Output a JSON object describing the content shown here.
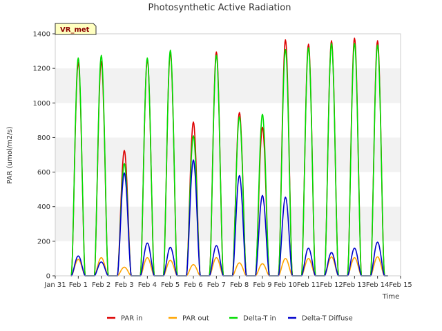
{
  "chart_data": {
    "type": "line",
    "title": "Photosynthetic Active Radiation",
    "xlabel": "Time",
    "ylabel": "PAR (umol/m2/s)",
    "ylim": [
      0,
      1400
    ],
    "xlim": [
      0,
      15
    ],
    "yticks": [
      0,
      200,
      400,
      600,
      800,
      1000,
      1200,
      1400
    ],
    "x_ticks": [
      {
        "value": 0,
        "label": "Jan 31"
      },
      {
        "value": 1,
        "label": "Feb 1"
      },
      {
        "value": 2,
        "label": "Feb 2"
      },
      {
        "value": 3,
        "label": "Feb 3"
      },
      {
        "value": 4,
        "label": "Feb 4"
      },
      {
        "value": 5,
        "label": "Feb 5"
      },
      {
        "value": 6,
        "label": "Feb 6"
      },
      {
        "value": 7,
        "label": "Feb 7"
      },
      {
        "value": 8,
        "label": "Feb 8"
      },
      {
        "value": 9,
        "label": "Feb 9"
      },
      {
        "value": 10,
        "label": "Feb 10"
      },
      {
        "value": 11,
        "label": "Feb 11"
      },
      {
        "value": 12,
        "label": "Feb 12"
      },
      {
        "value": 13,
        "label": "Feb 13"
      },
      {
        "value": 14,
        "label": "Feb 14"
      },
      {
        "value": 15,
        "label": "Feb 15"
      }
    ],
    "grid": "horizontal bands",
    "legend_position": "bottom",
    "annotation": "VR_met",
    "series": [
      {
        "name": "PAR in",
        "color": "#dd0000",
        "daily_peaks": [
          1235,
          1240,
          725,
          1250,
          1290,
          890,
          1295,
          945,
          860,
          1365,
          1340,
          1360,
          1375,
          1360
        ]
      },
      {
        "name": "PAR out",
        "color": "#ffa500",
        "daily_peaks": [
          95,
          105,
          50,
          105,
          90,
          65,
          105,
          75,
          70,
          100,
          100,
          110,
          105,
          110
        ]
      },
      {
        "name": "Delta-T in",
        "color": "#00dd00",
        "daily_peaks": [
          1260,
          1275,
          650,
          1260,
          1305,
          810,
          1275,
          920,
          935,
          1310,
          1320,
          1345,
          1345,
          1335
        ]
      },
      {
        "name": "Delta-T Diffuse",
        "color": "#0000cc",
        "daily_peaks": [
          115,
          80,
          595,
          190,
          165,
          670,
          175,
          580,
          465,
          455,
          160,
          135,
          160,
          195
        ]
      }
    ]
  }
}
